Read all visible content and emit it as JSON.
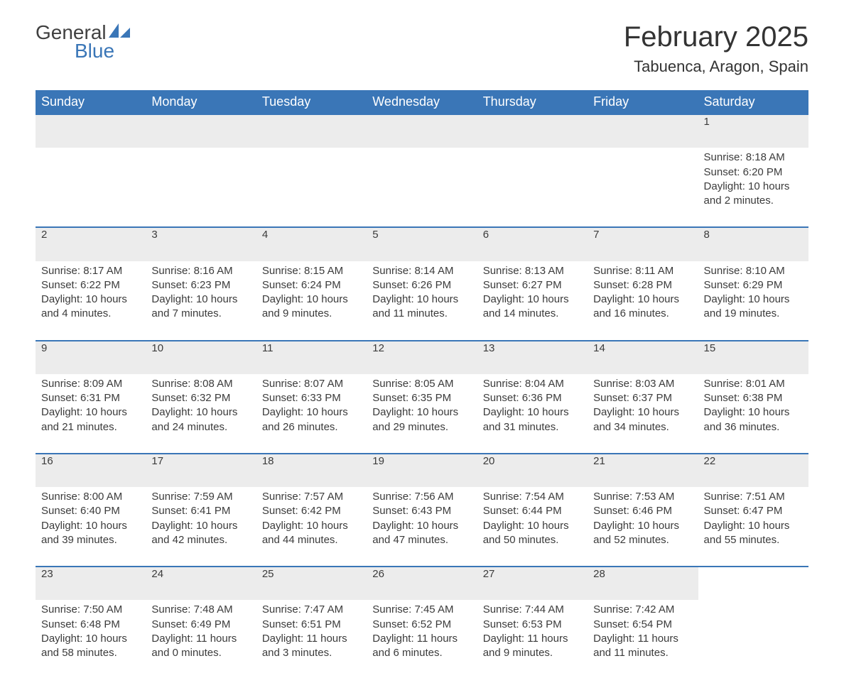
{
  "logo": {
    "word1": "General",
    "word2": "Blue",
    "sail_color": "#3a76b7",
    "text_dark": "#404040"
  },
  "title": "February 2025",
  "location": "Tabuenca, Aragon, Spain",
  "colors": {
    "header_bg": "#3a76b7",
    "header_text": "#ffffff",
    "row_divider": "#3a76b7",
    "daynum_bg": "#ececec",
    "body_text": "#3b3b3b",
    "page_bg": "#ffffff"
  },
  "typography": {
    "title_fontsize": 40,
    "location_fontsize": 22,
    "header_fontsize": 18,
    "cell_fontsize": 15
  },
  "weekdays": [
    "Sunday",
    "Monday",
    "Tuesday",
    "Wednesday",
    "Thursday",
    "Friday",
    "Saturday"
  ],
  "weeks": [
    [
      null,
      null,
      null,
      null,
      null,
      null,
      {
        "n": "1",
        "sr": "Sunrise: 8:18 AM",
        "ss": "Sunset: 6:20 PM",
        "dl": "Daylight: 10 hours and 2 minutes."
      }
    ],
    [
      {
        "n": "2",
        "sr": "Sunrise: 8:17 AM",
        "ss": "Sunset: 6:22 PM",
        "dl": "Daylight: 10 hours and 4 minutes."
      },
      {
        "n": "3",
        "sr": "Sunrise: 8:16 AM",
        "ss": "Sunset: 6:23 PM",
        "dl": "Daylight: 10 hours and 7 minutes."
      },
      {
        "n": "4",
        "sr": "Sunrise: 8:15 AM",
        "ss": "Sunset: 6:24 PM",
        "dl": "Daylight: 10 hours and 9 minutes."
      },
      {
        "n": "5",
        "sr": "Sunrise: 8:14 AM",
        "ss": "Sunset: 6:26 PM",
        "dl": "Daylight: 10 hours and 11 minutes."
      },
      {
        "n": "6",
        "sr": "Sunrise: 8:13 AM",
        "ss": "Sunset: 6:27 PM",
        "dl": "Daylight: 10 hours and 14 minutes."
      },
      {
        "n": "7",
        "sr": "Sunrise: 8:11 AM",
        "ss": "Sunset: 6:28 PM",
        "dl": "Daylight: 10 hours and 16 minutes."
      },
      {
        "n": "8",
        "sr": "Sunrise: 8:10 AM",
        "ss": "Sunset: 6:29 PM",
        "dl": "Daylight: 10 hours and 19 minutes."
      }
    ],
    [
      {
        "n": "9",
        "sr": "Sunrise: 8:09 AM",
        "ss": "Sunset: 6:31 PM",
        "dl": "Daylight: 10 hours and 21 minutes."
      },
      {
        "n": "10",
        "sr": "Sunrise: 8:08 AM",
        "ss": "Sunset: 6:32 PM",
        "dl": "Daylight: 10 hours and 24 minutes."
      },
      {
        "n": "11",
        "sr": "Sunrise: 8:07 AM",
        "ss": "Sunset: 6:33 PM",
        "dl": "Daylight: 10 hours and 26 minutes."
      },
      {
        "n": "12",
        "sr": "Sunrise: 8:05 AM",
        "ss": "Sunset: 6:35 PM",
        "dl": "Daylight: 10 hours and 29 minutes."
      },
      {
        "n": "13",
        "sr": "Sunrise: 8:04 AM",
        "ss": "Sunset: 6:36 PM",
        "dl": "Daylight: 10 hours and 31 minutes."
      },
      {
        "n": "14",
        "sr": "Sunrise: 8:03 AM",
        "ss": "Sunset: 6:37 PM",
        "dl": "Daylight: 10 hours and 34 minutes."
      },
      {
        "n": "15",
        "sr": "Sunrise: 8:01 AM",
        "ss": "Sunset: 6:38 PM",
        "dl": "Daylight: 10 hours and 36 minutes."
      }
    ],
    [
      {
        "n": "16",
        "sr": "Sunrise: 8:00 AM",
        "ss": "Sunset: 6:40 PM",
        "dl": "Daylight: 10 hours and 39 minutes."
      },
      {
        "n": "17",
        "sr": "Sunrise: 7:59 AM",
        "ss": "Sunset: 6:41 PM",
        "dl": "Daylight: 10 hours and 42 minutes."
      },
      {
        "n": "18",
        "sr": "Sunrise: 7:57 AM",
        "ss": "Sunset: 6:42 PM",
        "dl": "Daylight: 10 hours and 44 minutes."
      },
      {
        "n": "19",
        "sr": "Sunrise: 7:56 AM",
        "ss": "Sunset: 6:43 PM",
        "dl": "Daylight: 10 hours and 47 minutes."
      },
      {
        "n": "20",
        "sr": "Sunrise: 7:54 AM",
        "ss": "Sunset: 6:44 PM",
        "dl": "Daylight: 10 hours and 50 minutes."
      },
      {
        "n": "21",
        "sr": "Sunrise: 7:53 AM",
        "ss": "Sunset: 6:46 PM",
        "dl": "Daylight: 10 hours and 52 minutes."
      },
      {
        "n": "22",
        "sr": "Sunrise: 7:51 AM",
        "ss": "Sunset: 6:47 PM",
        "dl": "Daylight: 10 hours and 55 minutes."
      }
    ],
    [
      {
        "n": "23",
        "sr": "Sunrise: 7:50 AM",
        "ss": "Sunset: 6:48 PM",
        "dl": "Daylight: 10 hours and 58 minutes."
      },
      {
        "n": "24",
        "sr": "Sunrise: 7:48 AM",
        "ss": "Sunset: 6:49 PM",
        "dl": "Daylight: 11 hours and 0 minutes."
      },
      {
        "n": "25",
        "sr": "Sunrise: 7:47 AM",
        "ss": "Sunset: 6:51 PM",
        "dl": "Daylight: 11 hours and 3 minutes."
      },
      {
        "n": "26",
        "sr": "Sunrise: 7:45 AM",
        "ss": "Sunset: 6:52 PM",
        "dl": "Daylight: 11 hours and 6 minutes."
      },
      {
        "n": "27",
        "sr": "Sunrise: 7:44 AM",
        "ss": "Sunset: 6:53 PM",
        "dl": "Daylight: 11 hours and 9 minutes."
      },
      {
        "n": "28",
        "sr": "Sunrise: 7:42 AM",
        "ss": "Sunset: 6:54 PM",
        "dl": "Daylight: 11 hours and 11 minutes."
      },
      null
    ]
  ]
}
